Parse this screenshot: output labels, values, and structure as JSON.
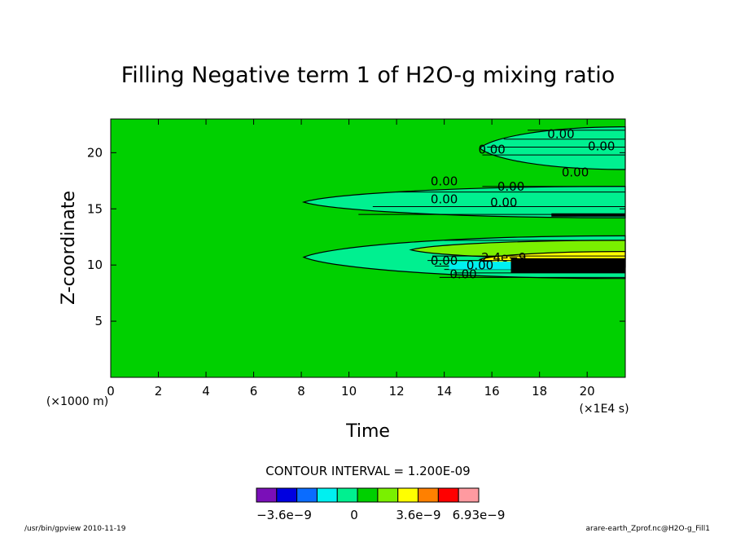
{
  "chart_data": {
    "type": "contour",
    "title": "Filling Negative term 1 of H2O-g mixing ratio",
    "xlabel": "Time",
    "xunit": "(×1E4 s)",
    "ylabel": "Z-coordinate",
    "yunit": "(×1000 m)",
    "xlim": [
      0,
      21.6
    ],
    "ylim": [
      0,
      23
    ],
    "xticks": [
      0,
      2,
      4,
      6,
      8,
      10,
      12,
      14,
      16,
      18,
      20
    ],
    "yticks": [
      5,
      10,
      15,
      20
    ],
    "contour_interval": "CONTOUR INTERVAL = 1.200E-09",
    "colorbar": {
      "colors": [
        "#7a0fb8",
        "#0000e0",
        "#0a6cff",
        "#00f0f0",
        "#00f090",
        "#00d000",
        "#7af000",
        "#ffff00",
        "#ff8000",
        "#ff0000",
        "#ff9aa0"
      ],
      "labels": [
        "−3.6e−9",
        "0",
        "3.6e−9",
        "6.93e−9"
      ]
    },
    "contour_labels": [
      "0.00",
      "0.00",
      "0.00",
      "0.00",
      "0.00",
      "0.00",
      "0.00",
      "0.00",
      "0.00",
      "2.4e−9",
      "0.00",
      "0.00"
    ],
    "regions": [
      {
        "color": "#00f090",
        "t_start": 8.1,
        "z_low": 14.2,
        "z_high": 17.0
      },
      {
        "color": "#00f090",
        "t_start": 8.1,
        "z_low": 8.8,
        "z_high": 12.6
      },
      {
        "color": "#00f090",
        "t_start": 15.5,
        "z_low": 18.5,
        "z_high": 22.3
      },
      {
        "color": "#7af000",
        "t_start": 12.6,
        "z_low": 10.5,
        "z_high": 12.2
      },
      {
        "color": "#ffff00",
        "t_start": 15.5,
        "z_low": 9.8,
        "z_high": 11.2
      }
    ]
  },
  "footer": {
    "left": "/usr/bin/gpview   2010-11-19",
    "right": "arare-earth_Zprof.nc@H2O-g_Fill1"
  }
}
